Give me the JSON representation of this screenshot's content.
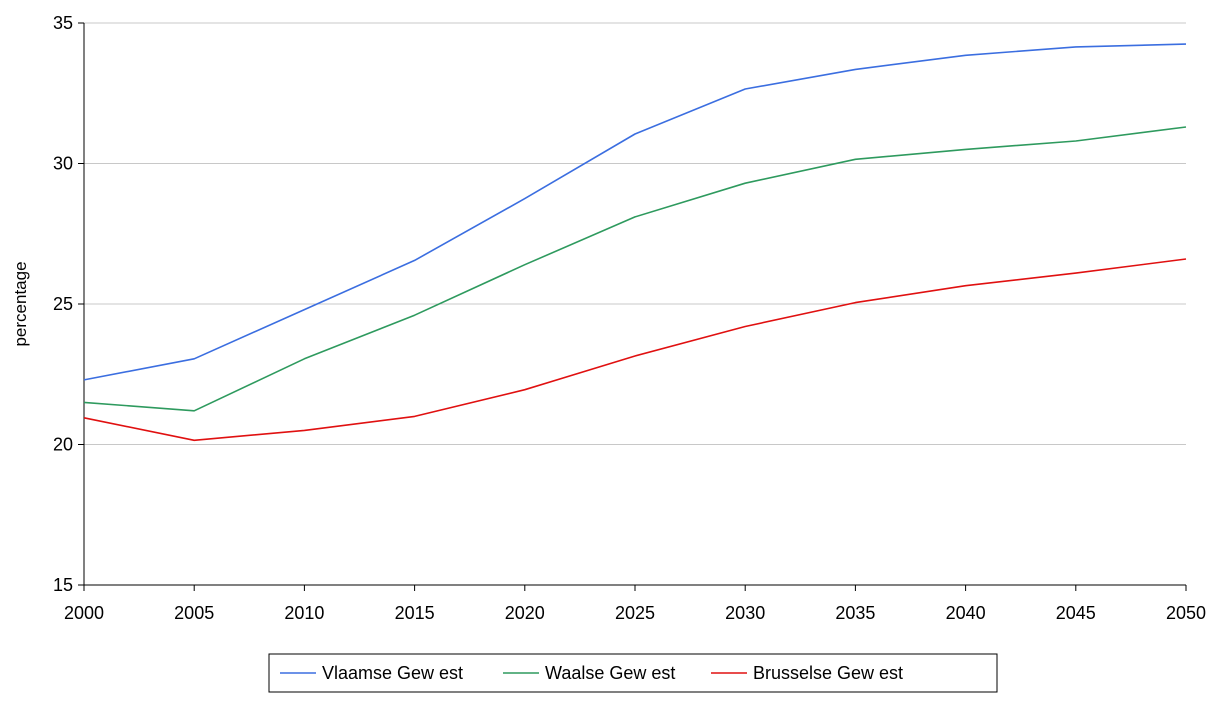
{
  "chart_data": {
    "type": "line",
    "title": "",
    "xlabel": "",
    "ylabel": "percentage",
    "x": [
      2000,
      2005,
      2010,
      2015,
      2020,
      2025,
      2030,
      2035,
      2040,
      2045,
      2050
    ],
    "xlim": [
      2000,
      2050
    ],
    "ylim": [
      15,
      35
    ],
    "yticks": [
      15,
      20,
      25,
      30,
      35
    ],
    "grid": "horizontal",
    "legend_position": "bottom",
    "series": [
      {
        "name": "Vlaamse Gew est",
        "color": "#3b6ee0",
        "values": [
          22.3,
          23.05,
          24.8,
          26.55,
          28.75,
          31.05,
          32.65,
          33.35,
          33.85,
          34.15,
          34.25
        ]
      },
      {
        "name": "Waalse Gew est",
        "color": "#2e9a5e",
        "values": [
          21.5,
          21.2,
          23.05,
          24.6,
          26.4,
          28.1,
          29.3,
          30.15,
          30.5,
          30.8,
          31.3
        ]
      },
      {
        "name": "Brusselse Gew est",
        "color": "#e01010",
        "values": [
          20.95,
          20.15,
          20.5,
          21.0,
          21.95,
          23.15,
          24.2,
          25.05,
          25.65,
          26.1,
          26.6
        ]
      }
    ]
  }
}
